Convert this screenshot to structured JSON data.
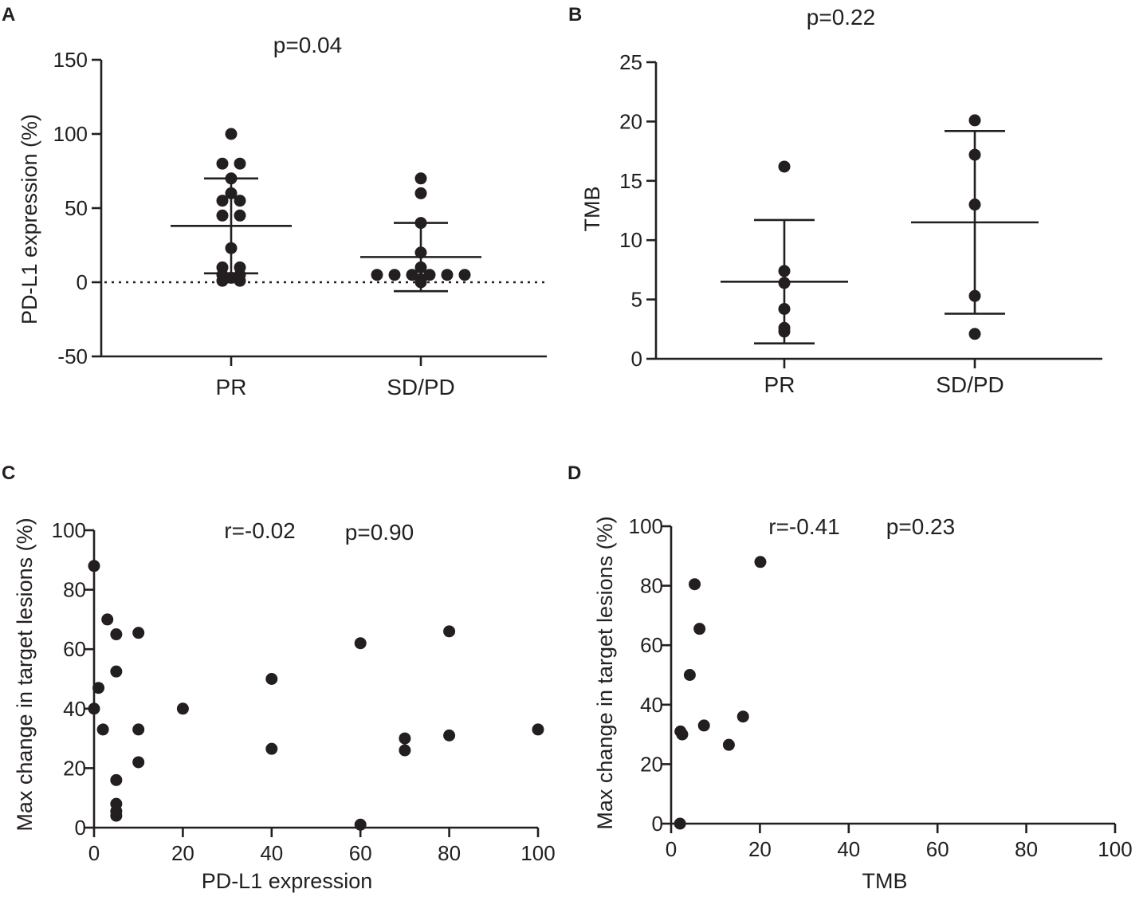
{
  "chart_data": [
    {
      "panel": "A",
      "type": "scatter",
      "title": "p=0.04",
      "xlabel": "",
      "ylabel": "PD-L1 expression (%)",
      "categories": [
        "PR",
        "SD/PD"
      ],
      "ylim": [
        -50,
        150
      ],
      "yticks": [
        -50,
        0,
        50,
        100,
        150
      ],
      "reference_line": 0,
      "series": [
        {
          "name": "PR",
          "values": [
            100,
            80,
            80,
            70,
            60,
            55,
            55,
            45,
            45,
            23,
            10,
            10,
            5,
            5,
            3,
            1,
            1
          ],
          "mean": 38,
          "sd": 32
        },
        {
          "name": "SD/PD",
          "values": [
            70,
            60,
            40,
            20,
            10,
            5,
            5,
            5,
            5,
            5,
            5,
            2,
            1,
            0
          ],
          "mean": 17,
          "sd": 23
        }
      ]
    },
    {
      "panel": "B",
      "type": "scatter",
      "title": "p=0.22",
      "xlabel": "",
      "ylabel": "TMB",
      "categories": [
        "PR",
        "SD/PD"
      ],
      "ylim": [
        0,
        25
      ],
      "yticks": [
        0,
        5,
        10,
        15,
        20,
        25
      ],
      "series": [
        {
          "name": "PR",
          "values": [
            16.2,
            7.4,
            6.4,
            4.2,
            2.6,
            2.3
          ],
          "mean": 6.5,
          "sd": 5.2
        },
        {
          "name": "SD/PD",
          "values": [
            20.1,
            17.2,
            13,
            5.3,
            2.1
          ],
          "mean": 11.5,
          "sd": 7.7
        }
      ]
    },
    {
      "panel": "C",
      "type": "scatter",
      "title": "",
      "annotations": [
        "r=-0.02",
        "p=0.90"
      ],
      "xlabel": "PD-L1 expression",
      "ylabel": "Max change in target lesions (%)",
      "xlim": [
        0,
        100
      ],
      "ylim": [
        0,
        100
      ],
      "xticks": [
        0,
        20,
        40,
        60,
        80,
        100
      ],
      "yticks": [
        0,
        20,
        40,
        60,
        80,
        100
      ],
      "x": [
        0,
        0,
        1,
        2,
        3,
        5,
        5,
        5,
        5,
        5,
        5,
        10,
        10,
        10,
        20,
        40,
        40,
        60,
        60,
        70,
        70,
        80,
        80,
        100
      ],
      "y": [
        88,
        40,
        47,
        33,
        70,
        65,
        52.5,
        16,
        8,
        5.5,
        4,
        65.5,
        33,
        22,
        40,
        50,
        26.5,
        62,
        1,
        30,
        26,
        66,
        31,
        33
      ]
    },
    {
      "panel": "D",
      "type": "scatter",
      "title": "",
      "annotations": [
        "r=-0.41",
        "p=0.23"
      ],
      "xlabel": "TMB",
      "ylabel": "Max change in target lesions (%)",
      "xlim": [
        0,
        100
      ],
      "ylim": [
        0,
        100
      ],
      "xticks": [
        0,
        20,
        40,
        60,
        80,
        100
      ],
      "yticks": [
        0,
        20,
        40,
        60,
        80,
        100
      ],
      "x": [
        2,
        2.1,
        2.5,
        4.2,
        5.3,
        6.4,
        7.4,
        13,
        16.2,
        20.1
      ],
      "y": [
        0,
        31,
        30,
        50,
        80.5,
        65.5,
        33,
        26.5,
        36,
        88
      ]
    }
  ]
}
